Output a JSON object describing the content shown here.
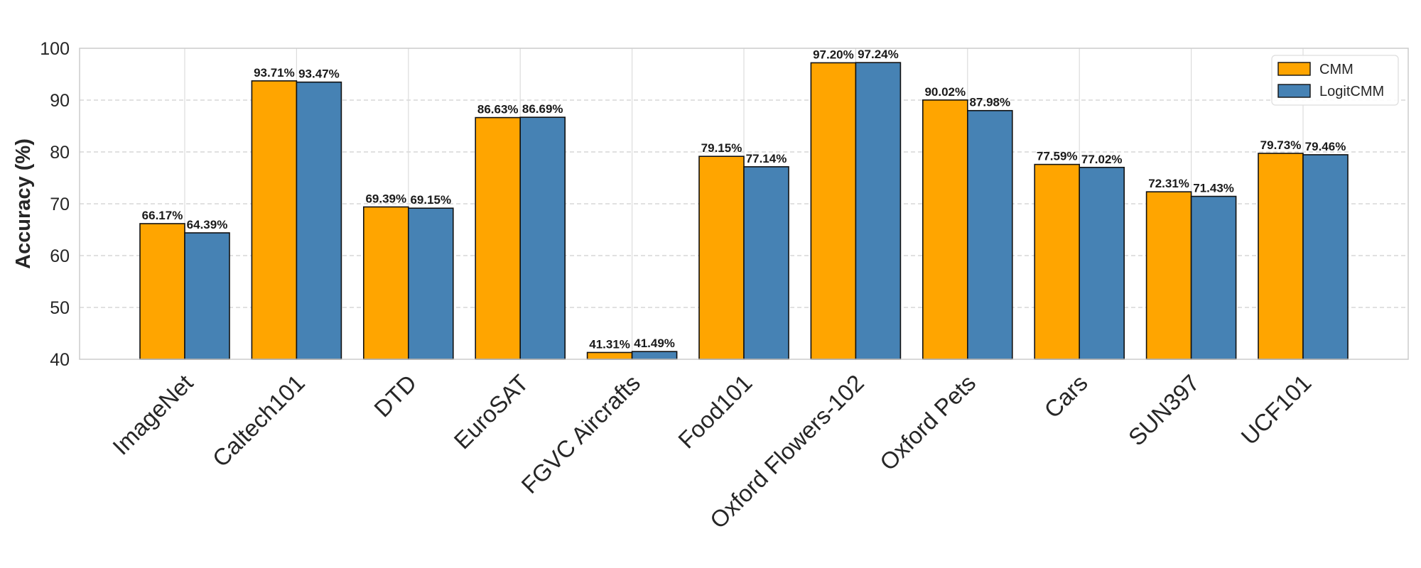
{
  "chart_data": {
    "type": "bar",
    "title": "",
    "xlabel": "",
    "ylabel": "Accuracy (%)",
    "ylim": [
      40,
      100
    ],
    "yticks": [
      40,
      50,
      60,
      70,
      80,
      90,
      100
    ],
    "grid": true,
    "legend_position": "top-right",
    "categories": [
      "ImageNet",
      "Caltech101",
      "DTD",
      "EuroSAT",
      "FGVC Aircrafts",
      "Food101",
      "Oxford Flowers-102",
      "Oxford Pets",
      "Cars",
      "SUN397",
      "UCF101"
    ],
    "series": [
      {
        "name": "CMM",
        "color": "#FFA500",
        "values": [
          66.17,
          93.71,
          69.39,
          86.63,
          41.31,
          79.15,
          97.2,
          90.02,
          77.59,
          72.31,
          79.73
        ],
        "labels": [
          "66.17%",
          "93.71%",
          "69.39%",
          "86.63%",
          "41.31%",
          "79.15%",
          "97.20%",
          "90.02%",
          "77.59%",
          "72.31%",
          "79.73%"
        ]
      },
      {
        "name": "LogitCMM",
        "color": "#4682B4",
        "values": [
          64.39,
          93.47,
          69.15,
          86.69,
          41.49,
          77.14,
          97.24,
          87.98,
          77.02,
          71.43,
          79.46
        ],
        "labels": [
          "64.39%",
          "93.47%",
          "69.15%",
          "86.69%",
          "41.49%",
          "77.14%",
          "97.24%",
          "87.98%",
          "77.02%",
          "71.43%",
          "79.46%"
        ]
      }
    ]
  }
}
